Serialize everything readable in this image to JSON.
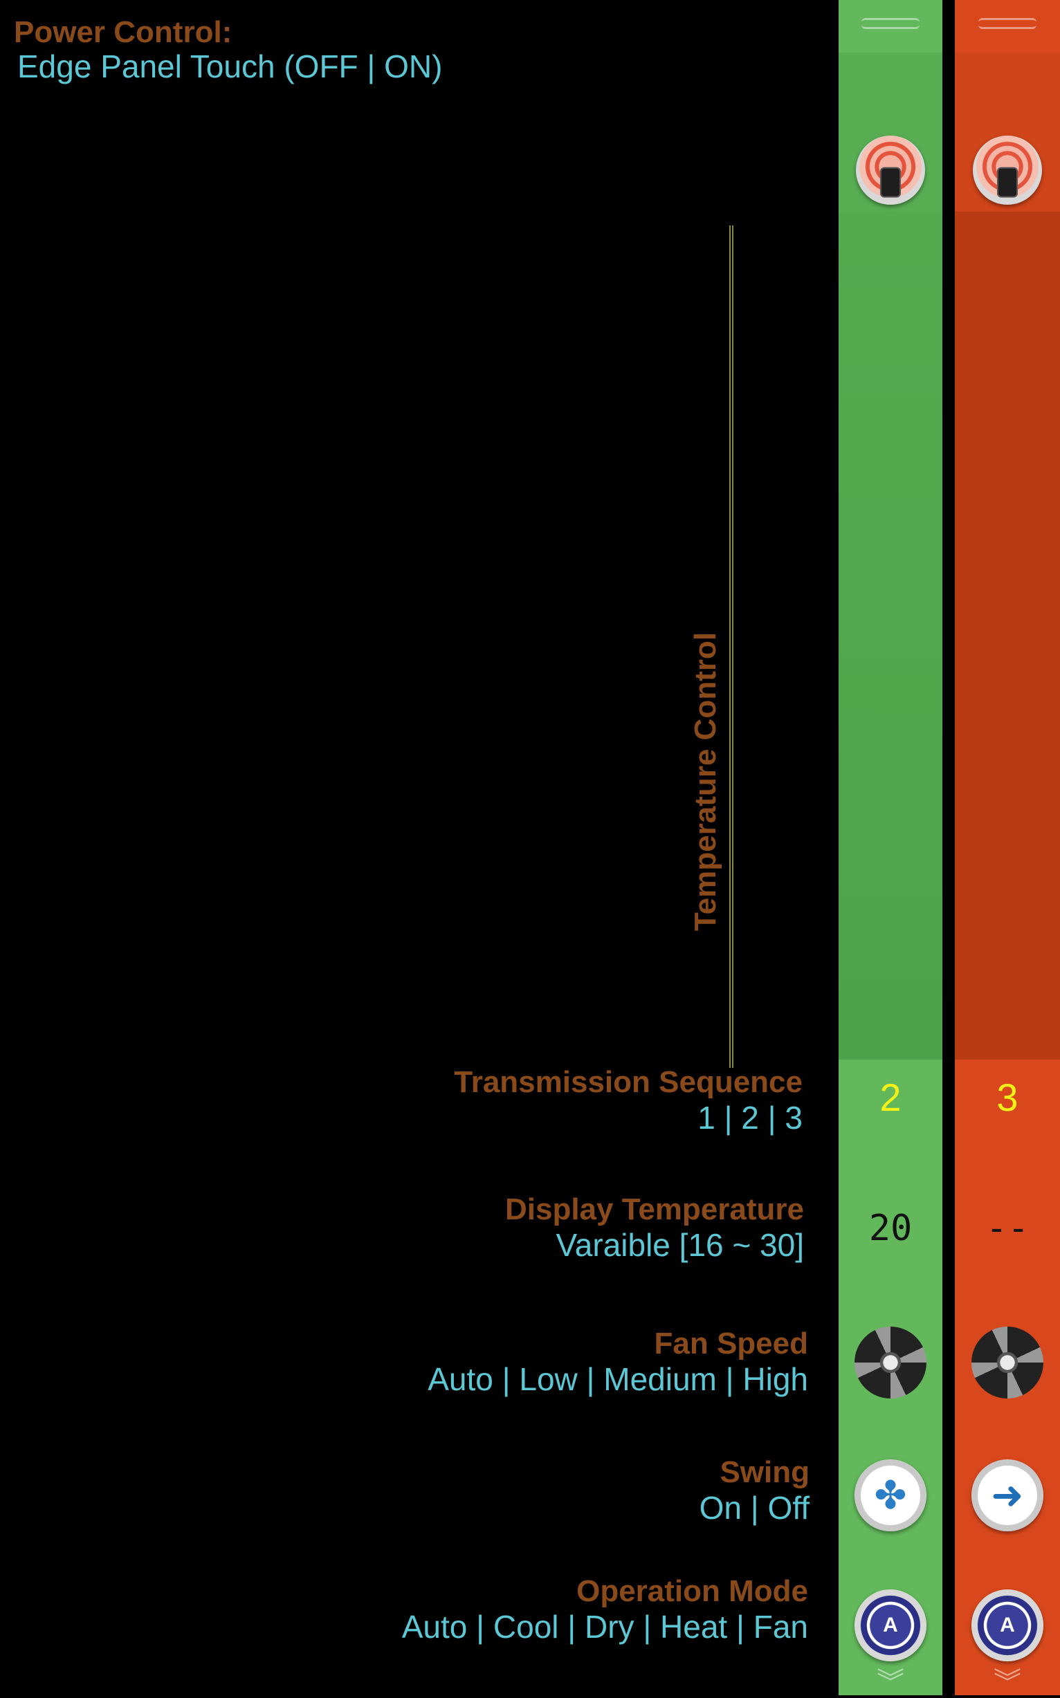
{
  "power": {
    "title": "Power Control:",
    "desc": "Edge Panel Touch (OFF | ON)"
  },
  "temperature_control": {
    "title": "Temperature Control"
  },
  "transmission": {
    "title": "Transmission Sequence",
    "values": "1 | 2 | 3"
  },
  "display_temp": {
    "title": "Display Temperature",
    "values": "Varaible [16 ~ 30]"
  },
  "fan_speed": {
    "title": "Fan Speed",
    "values": "Auto | Low | Medium | High"
  },
  "swing": {
    "title": "Swing",
    "values": "On | Off"
  },
  "operation_mode": {
    "title": "Operation Mode",
    "values": "Auto | Cool | Dry | Heat | Fan"
  },
  "panels": [
    {
      "color": "#52a74f",
      "sequence": "2",
      "display": "20",
      "swing_icon": "swing-fan-icon",
      "mode_icon": "auto-mode-icon",
      "mode_letter": "A"
    },
    {
      "color": "#d9481c",
      "sequence": "3",
      "display": "--",
      "swing_icon": "swing-arrow-icon",
      "mode_icon": "auto-mode-icon",
      "mode_letter": "A"
    }
  ],
  "colors": {
    "label": "#8a4a1a",
    "value": "#5cc8d6",
    "sequence": "#f2f217",
    "divider": "#8d8a3a"
  }
}
